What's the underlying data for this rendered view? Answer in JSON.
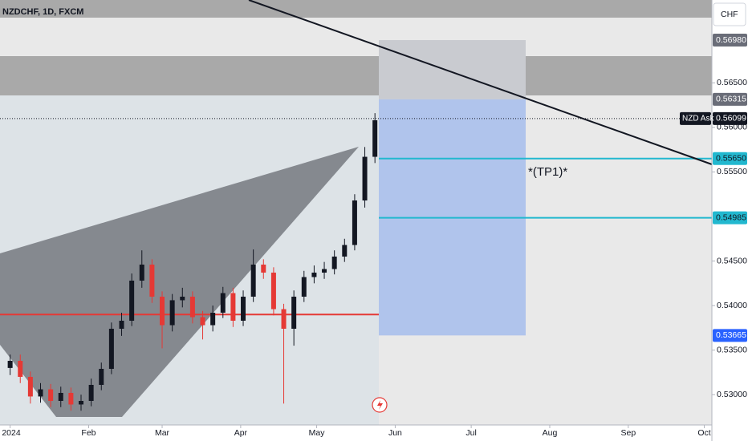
{
  "chart_data": {
    "type": "candlestick",
    "title": "NZDCHF, 1D, FXCM",
    "currency": "CHF",
    "annotation": "*(TP1)*",
    "ask_label": "NZD Ask",
    "up_color": "#131722",
    "down_color": "#e53935",
    "x": [
      0,
      4,
      8,
      12,
      16,
      20,
      24,
      28,
      32,
      36,
      40,
      44,
      48,
      52,
      56,
      60,
      64,
      68,
      72,
      76,
      80,
      84,
      88,
      92,
      96,
      100,
      104,
      108,
      112,
      116,
      120,
      124,
      128,
      132,
      136,
      140,
      144
    ],
    "open": [
      0.533,
      0.5338,
      0.532,
      0.5298,
      0.5306,
      0.5293,
      0.5302,
      0.5289,
      0.5293,
      0.5311,
      0.5329,
      0.5374,
      0.5383,
      0.5428,
      0.5446,
      0.541,
      0.5378,
      0.5406,
      0.541,
      0.5387,
      0.5378,
      0.5392,
      0.5414,
      0.5383,
      0.541,
      0.5446,
      0.5437,
      0.5396,
      0.5374,
      0.541,
      0.5432,
      0.5437,
      0.5441,
      0.5455,
      0.5468,
      0.5518,
      0.5567
    ],
    "high": [
      0.5345,
      0.5345,
      0.5326,
      0.5313,
      0.5312,
      0.5309,
      0.5308,
      0.53,
      0.5318,
      0.5336,
      0.5381,
      0.5392,
      0.5436,
      0.5462,
      0.5452,
      0.5416,
      0.5413,
      0.542,
      0.5416,
      0.5394,
      0.54,
      0.5421,
      0.542,
      0.5417,
      0.5463,
      0.5452,
      0.5443,
      0.5402,
      0.5417,
      0.5439,
      0.5445,
      0.5449,
      0.5462,
      0.5475,
      0.5525,
      0.5578,
      0.5616
    ],
    "low": [
      0.5322,
      0.5313,
      0.529,
      0.5291,
      0.5286,
      0.5286,
      0.5282,
      0.5282,
      0.5287,
      0.5305,
      0.5323,
      0.5366,
      0.5377,
      0.542,
      0.5403,
      0.5352,
      0.5371,
      0.5398,
      0.538,
      0.5362,
      0.5371,
      0.5386,
      0.5376,
      0.5377,
      0.5404,
      0.543,
      0.5389,
      0.529,
      0.5355,
      0.5404,
      0.5425,
      0.543,
      0.5435,
      0.5449,
      0.5462,
      0.551,
      0.556
    ],
    "close": [
      0.5338,
      0.532,
      0.5298,
      0.5306,
      0.5293,
      0.5302,
      0.5289,
      0.5293,
      0.5311,
      0.5329,
      0.5374,
      0.5383,
      0.5428,
      0.5446,
      0.541,
      0.5378,
      0.5406,
      0.541,
      0.5387,
      0.5378,
      0.5392,
      0.5414,
      0.5383,
      0.541,
      0.5446,
      0.5437,
      0.5396,
      0.5374,
      0.541,
      0.5432,
      0.5437,
      0.5441,
      0.5455,
      0.5468,
      0.5518,
      0.5567,
      0.5608
    ],
    "xlim": [
      -4,
      277
    ],
    "xticks": [
      {
        "value": 0,
        "label": "2024"
      },
      {
        "value": 31,
        "label": "Feb"
      },
      {
        "value": 60,
        "label": "Mar"
      },
      {
        "value": 91,
        "label": "Apr"
      },
      {
        "value": 121,
        "label": "May"
      },
      {
        "value": 152,
        "label": "Jun"
      },
      {
        "value": 182,
        "label": "Jul"
      },
      {
        "value": 213,
        "label": "Aug"
      },
      {
        "value": 244,
        "label": "Sep"
      },
      {
        "value": 274,
        "label": "Oct"
      }
    ],
    "ylim": [
      0.5266,
      0.5743
    ],
    "yticks": [
      {
        "value": 0.565,
        "label": "0.56500"
      },
      {
        "value": 0.56,
        "label": "0.56000"
      },
      {
        "value": 0.555,
        "label": "0.55500"
      },
      {
        "value": 0.545,
        "label": "0.54500"
      },
      {
        "value": 0.54,
        "label": "0.54000"
      },
      {
        "value": 0.535,
        "label": "0.53500"
      },
      {
        "value": 0.53,
        "label": "0.53000"
      }
    ],
    "support_level": 0.539,
    "support_color": "#e53935",
    "levels": [
      {
        "value": 0.5698,
        "label": "0.56980",
        "color": "#6a6d78"
      },
      {
        "value": 0.56315,
        "label": "0.56315",
        "color": "#6a6d78"
      },
      {
        "value": 0.56099,
        "label": "0.56099",
        "color": "#131722"
      },
      {
        "value": 0.5565,
        "label": "0.55650",
        "color": "#22b8cf"
      },
      {
        "value": 0.54985,
        "label": "0.54985",
        "color": "#22b8cf"
      },
      {
        "value": 0.53665,
        "label": "0.53665",
        "color": "#2962ff"
      }
    ]
  }
}
